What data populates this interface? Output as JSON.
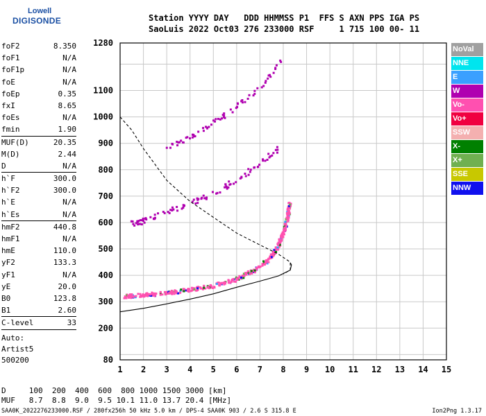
{
  "logo": {
    "line1": "Lowell",
    "line2": "DIGISONDE"
  },
  "header": {
    "line1": "Station YYYY DAY   DDD HHMMSS P1  FFS S AXN PPS IGA PS",
    "line2": "SaoLuis 2022 Oct03 276 233000 RSF     1 715 100 00- 11"
  },
  "params": [
    {
      "k": "foF2",
      "v": "8.350"
    },
    {
      "k": "foF1",
      "v": "N/A"
    },
    {
      "k": "foF1p",
      "v": "N/A"
    },
    {
      "k": "foE",
      "v": "N/A"
    },
    {
      "k": "foEp",
      "v": "0.35"
    },
    {
      "k": "fxI",
      "v": "8.65"
    },
    {
      "k": "foEs",
      "v": "N/A"
    },
    {
      "k": "fmin",
      "v": "1.90"
    },
    {
      "sep": true
    },
    {
      "k": "MUF(D)",
      "v": "20.35"
    },
    {
      "k": "M(D)",
      "v": "2.44"
    },
    {
      "k": "D",
      "v": "N/A"
    },
    {
      "sep": true
    },
    {
      "k": "h`F",
      "v": "300.0"
    },
    {
      "k": "h`F2",
      "v": "300.0"
    },
    {
      "k": "h`E",
      "v": "N/A"
    },
    {
      "k": "h`Es",
      "v": "N/A"
    },
    {
      "sep": true
    },
    {
      "k": "hmF2",
      "v": "440.8"
    },
    {
      "k": "hmF1",
      "v": "N/A"
    },
    {
      "k": "hmE",
      "v": "110.0"
    },
    {
      "k": "yF2",
      "v": "133.3"
    },
    {
      "k": "yF1",
      "v": "N/A"
    },
    {
      "k": "yE",
      "v": "20.0"
    },
    {
      "k": "B0",
      "v": "123.8"
    },
    {
      "k": "B1",
      "v": "2.60"
    },
    {
      "sep": true
    },
    {
      "k": "C-level",
      "v": "33"
    },
    {
      "sep": true
    }
  ],
  "auto": {
    "line1": "Auto:",
    "line2": "Artist5",
    "line3": "500200"
  },
  "muf_table": {
    "line1": "D     100  200  400  600  800 1000 1500 3000 [km]",
    "line2": "MUF   8.7  8.8  9.0  9.5 10.1 11.0 13.7 20.4 [MHz]"
  },
  "footer": {
    "left": "SAA0K_2022276233000.RSF / 280fx256h 50 kHz 5.0 km / DPS-4 SAA0K 903 / 2.6 S 315.8 E",
    "right": "Ion2Png 1.3.17"
  },
  "legend": [
    {
      "label": "NoVal",
      "color": "#a0a0a0"
    },
    {
      "label": "NNE",
      "color": "#00e5ee"
    },
    {
      "label": "E",
      "color": "#3aa0ff"
    },
    {
      "label": "W",
      "color": "#b000b0"
    },
    {
      "label": "Vo-",
      "color": "#ff50b0"
    },
    {
      "label": "Vo+",
      "color": "#f00040"
    },
    {
      "label": "SSW",
      "color": "#f4b0b0"
    },
    {
      "label": "X-",
      "color": "#008000"
    },
    {
      "label": "X+",
      "color": "#70b050"
    },
    {
      "label": "SSE",
      "color": "#c8c800"
    },
    {
      "label": "NNW",
      "color": "#1010ee"
    }
  ],
  "chart_data": {
    "type": "scatter",
    "title": "",
    "xlabel": "",
    "ylabel": "",
    "xlim": [
      1,
      15
    ],
    "ylim": [
      80,
      1280
    ],
    "x_ticks": [
      1,
      2,
      3,
      4,
      5,
      6,
      7,
      8,
      9,
      10,
      11,
      12,
      13,
      14,
      15
    ],
    "y_ticks": [
      80,
      200,
      300,
      400,
      500,
      600,
      700,
      800,
      900,
      1000,
      1100,
      1280
    ],
    "y_grid": [
      100,
      200,
      300,
      400,
      500,
      600,
      700,
      800,
      900,
      1000,
      1100,
      1200,
      1280
    ],
    "grid": true,
    "series": [
      {
        "kind": "cluster",
        "color_key": "Vo-",
        "points": [
          [
            1.2,
            320
          ],
          [
            2,
            325
          ],
          [
            3,
            332
          ],
          [
            4,
            345
          ],
          [
            5,
            360
          ],
          [
            6,
            385
          ],
          [
            6.8,
            420
          ],
          [
            7.4,
            460
          ],
          [
            7.8,
            510
          ],
          [
            8.0,
            560
          ],
          [
            8.2,
            620
          ],
          [
            8.3,
            680
          ]
        ]
      },
      {
        "kind": "cluster",
        "color_key": "W",
        "points": [
          [
            1.3,
            590
          ],
          [
            2,
            605
          ],
          [
            3,
            640
          ],
          [
            4,
            670
          ],
          [
            5,
            710
          ],
          [
            6,
            760
          ],
          [
            7,
            820
          ],
          [
            7.8,
            880
          ]
        ]
      },
      {
        "kind": "cluster",
        "color_key": "W",
        "points": [
          [
            3,
            880
          ],
          [
            4,
            925
          ],
          [
            5,
            975
          ],
          [
            6,
            1040
          ],
          [
            7,
            1110
          ],
          [
            8,
            1220
          ]
        ]
      },
      {
        "kind": "line",
        "style": "solid",
        "label": "profile",
        "points": [
          [
            1,
            262
          ],
          [
            2,
            275
          ],
          [
            3,
            292
          ],
          [
            4,
            310
          ],
          [
            5,
            330
          ],
          [
            6,
            355
          ],
          [
            7,
            378
          ],
          [
            7.8,
            398
          ],
          [
            8.3,
            420
          ],
          [
            8.35,
            440
          ],
          [
            8.3,
            448
          ]
        ]
      },
      {
        "kind": "line",
        "style": "dashed",
        "label": "profile",
        "points": [
          [
            1,
            1000
          ],
          [
            1.5,
            950
          ],
          [
            2,
            880
          ],
          [
            2.5,
            820
          ],
          [
            3,
            760
          ],
          [
            3.5,
            720
          ],
          [
            4,
            680
          ],
          [
            4.5,
            650
          ],
          [
            5,
            620
          ],
          [
            6,
            560
          ],
          [
            7,
            515
          ],
          [
            7.8,
            480
          ],
          [
            8.3,
            450
          ],
          [
            8.3,
            420
          ],
          [
            8.0,
            405
          ]
        ]
      }
    ]
  }
}
